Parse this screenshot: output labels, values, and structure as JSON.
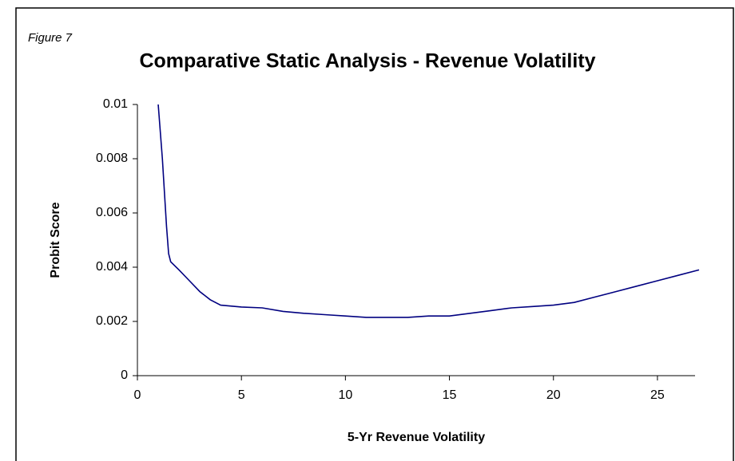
{
  "chart_data": {
    "type": "line",
    "figure_label": "Figure 7",
    "title": "Comparative Static Analysis - Revenue Volatility",
    "x_label": "5-Yr Revenue Volatility",
    "y_label": "Probit Score",
    "x": [
      1,
      1.2,
      1.4,
      1.5,
      1.6,
      2,
      2.5,
      3,
      3.5,
      4,
      5,
      6,
      7,
      8,
      9,
      10,
      11,
      12,
      13,
      14,
      15,
      16,
      17,
      18,
      19,
      20,
      21,
      22,
      23,
      24,
      25,
      26,
      27
    ],
    "series": [
      {
        "name": "Probit Score",
        "color": "#000080",
        "values": [
          0.01,
          0.008,
          0.0055,
          0.0045,
          0.0042,
          0.0039,
          0.0035,
          0.0031,
          0.0028,
          0.0026,
          0.00253,
          0.0025,
          0.00237,
          0.0023,
          0.00225,
          0.0022,
          0.00215,
          0.00215,
          0.00215,
          0.0022,
          0.0022,
          0.0023,
          0.0024,
          0.0025,
          0.00255,
          0.0026,
          0.0027,
          0.0029,
          0.0031,
          0.0033,
          0.0035,
          0.0037,
          0.0039
        ]
      }
    ],
    "xlim": [
      0,
      27
    ],
    "xticks": [
      0,
      5,
      10,
      15,
      20,
      25
    ],
    "ylim": [
      0,
      0.01
    ],
    "yticks": [
      0,
      0.002,
      0.004,
      0.006,
      0.008,
      0.01
    ]
  }
}
